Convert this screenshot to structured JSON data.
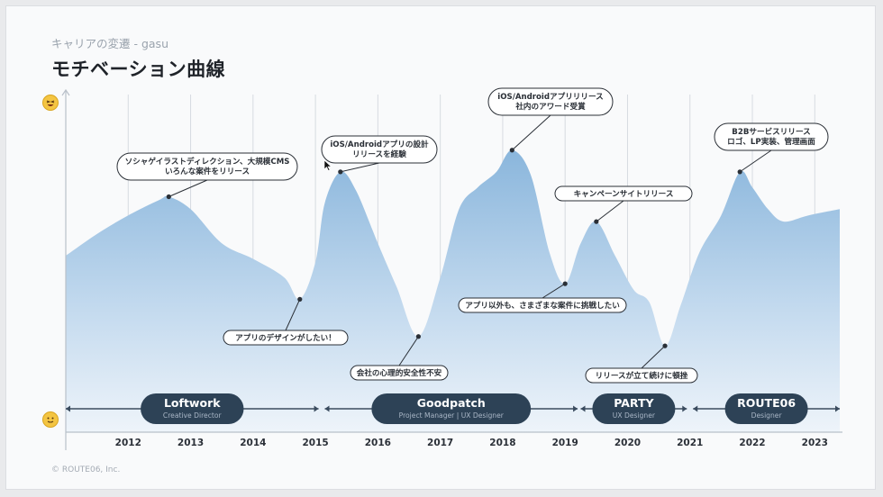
{
  "header": {
    "subtitle": "キャリアの変遷 - gasu",
    "title": "モチベーション曲線"
  },
  "footer": {
    "copyright": "© ROUTE06, Inc."
  },
  "icons": {
    "high": "laughing-face-icon",
    "low": "melting-face-icon",
    "cursor": "mouse-pointer-icon"
  },
  "colors": {
    "curve_top": "#8fb9dd",
    "curve_bottom": "#e6eff8",
    "pill": "#2d4256",
    "line": "#3a4b5e"
  },
  "chart_data": {
    "type": "area",
    "title": "モチベーション曲線",
    "xlabel": "",
    "ylabel": "",
    "x_ticks": [
      "2012",
      "2013",
      "2014",
      "2015",
      "2016",
      "2017",
      "2018",
      "2019",
      "2020",
      "2021",
      "2022",
      "2023"
    ],
    "xlim": [
      2011.0,
      2023.4
    ],
    "ylim": [
      0,
      100
    ],
    "grid": "vertical",
    "series": [
      {
        "x": [
          2011.0,
          2011.5,
          2012.0,
          2012.5,
          2012.65,
          2013.0,
          2013.5,
          2014.0,
          2014.5,
          2014.75,
          2015.0,
          2015.15,
          2015.4,
          2015.65,
          2016.0,
          2016.3,
          2016.65,
          2017.0,
          2017.3,
          2017.6,
          2017.9,
          2018.15,
          2018.45,
          2018.75,
          2019.0,
          2019.25,
          2019.5,
          2019.8,
          2020.1,
          2020.35,
          2020.6,
          2020.85,
          2021.15,
          2021.5,
          2021.8,
          2022.0,
          2022.25,
          2022.5,
          2022.9,
          2023.4
        ],
        "values": [
          51,
          58,
          64,
          69,
          70,
          66,
          55,
          50,
          44,
          37,
          49,
          68,
          78,
          72,
          55,
          41,
          25,
          44,
          66,
          73,
          78,
          85,
          77,
          52,
          42,
          55,
          62,
          51,
          40,
          36,
          22,
          35,
          52,
          64,
          78,
          73,
          66,
          62,
          64,
          66
        ]
      }
    ],
    "annotations": [
      {
        "x": 2012.65,
        "y": 70,
        "text": [
          "ソシャゲイラストディレクション、大規模CMS",
          "いろんな案件をリリース"
        ]
      },
      {
        "x": 2014.75,
        "y": 37,
        "text": [
          "アプリのデザインがしたい！"
        ]
      },
      {
        "x": 2015.4,
        "y": 78,
        "text": [
          "iOS/Androidアプリの設計",
          "リリースを経験"
        ]
      },
      {
        "x": 2016.65,
        "y": 25,
        "text": [
          "会社の心理的安全性不安"
        ]
      },
      {
        "x": 2018.15,
        "y": 85,
        "text": [
          "iOS/Androidアプリリリース",
          "社内のアワード受賞"
        ]
      },
      {
        "x": 2019.0,
        "y": 42,
        "text": [
          "アプリ以外も、さまざまな案件に挑戦したい"
        ]
      },
      {
        "x": 2019.5,
        "y": 62,
        "text": [
          "キャンペーンサイトリリース"
        ]
      },
      {
        "x": 2020.6,
        "y": 22,
        "text": [
          "リリースが立て続けに頓挫"
        ]
      },
      {
        "x": 2021.8,
        "y": 78,
        "text": [
          "B2Bサービスリリース",
          "ロゴ、LP実装、管理画面"
        ]
      }
    ],
    "career_periods": [
      {
        "company": "Loftwork",
        "role": "Creative Director",
        "start": 2011.0,
        "end": 2015.05
      },
      {
        "company": "Goodpatch",
        "role": "Project Manager | UX Designer",
        "start": 2015.15,
        "end": 2019.2
      },
      {
        "company": "PARTY",
        "role": "UX Designer",
        "start": 2019.25,
        "end": 2020.95
      },
      {
        "company": "ROUTE06",
        "role": "Designer",
        "start": 2021.05,
        "end": 2023.4
      }
    ]
  }
}
